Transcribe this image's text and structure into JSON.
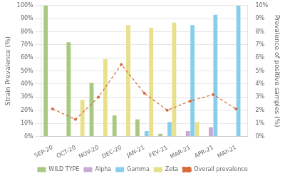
{
  "chart_data": {
    "type": "bar",
    "categories": [
      "SEP-20",
      "OCT-20",
      "NOV-20",
      "DEC-20",
      "JAN-21",
      "FEV-21",
      "MAR-21",
      "APR-21",
      "MAY-21"
    ],
    "series": [
      {
        "name": "WILD TYPE",
        "color": "#a8c97f",
        "values": [
          100,
          72,
          41,
          16,
          13,
          2,
          0,
          0,
          0
        ]
      },
      {
        "name": "Alpha",
        "color": "#c9a8d4",
        "values": [
          0,
          0,
          0,
          0,
          0,
          0,
          4,
          7,
          0
        ]
      },
      {
        "name": "Gamma",
        "color": "#87ceeb",
        "values": [
          0,
          0,
          0,
          0,
          4,
          11,
          85,
          93,
          100
        ]
      },
      {
        "name": "Zeta",
        "color": "#e8e08a",
        "values": [
          0,
          28,
          59,
          85,
          83,
          87,
          11,
          0,
          0
        ]
      },
      {
        "name": "Overall prevalence",
        "type": "line",
        "axis": "y2",
        "color": "#d4693a",
        "marker": "circle",
        "line_style": "dashed",
        "values": [
          2.1,
          1.3,
          3.0,
          5.5,
          3.3,
          2.0,
          2.7,
          3.2,
          2.1
        ]
      }
    ],
    "ylabel": "Strain Prevalence (%)",
    "y2label": "Prevalence of positive samples (%)",
    "ylim": [
      0,
      100
    ],
    "yticks": [
      {
        "value": 0,
        "label": "0%"
      },
      {
        "value": 10,
        "label": "10%"
      },
      {
        "value": 20,
        "label": "20%"
      },
      {
        "value": 30,
        "label": "30%"
      },
      {
        "value": 40,
        "label": "40%"
      },
      {
        "value": 50,
        "label": "50%"
      },
      {
        "value": 60,
        "label": "60%"
      },
      {
        "value": 70,
        "label": "70%"
      },
      {
        "value": 80,
        "label": "80%"
      },
      {
        "value": 90,
        "label": "90%"
      },
      {
        "value": 100,
        "label": "100%"
      }
    ],
    "y2lim": [
      0,
      10
    ],
    "y2ticks": [
      {
        "value": 0,
        "label": "0%"
      },
      {
        "value": 1,
        "label": "1%"
      },
      {
        "value": 2,
        "label": "2%"
      },
      {
        "value": 3,
        "label": "3%"
      },
      {
        "value": 4,
        "label": "4%"
      },
      {
        "value": 5,
        "label": "5%"
      },
      {
        "value": 6,
        "label": "6%"
      },
      {
        "value": 7,
        "label": "7%"
      },
      {
        "value": 8,
        "label": "8%"
      },
      {
        "value": 9,
        "label": "9%"
      },
      {
        "value": 10,
        "label": "10%"
      }
    ],
    "grid": true,
    "legend": "bottom"
  }
}
